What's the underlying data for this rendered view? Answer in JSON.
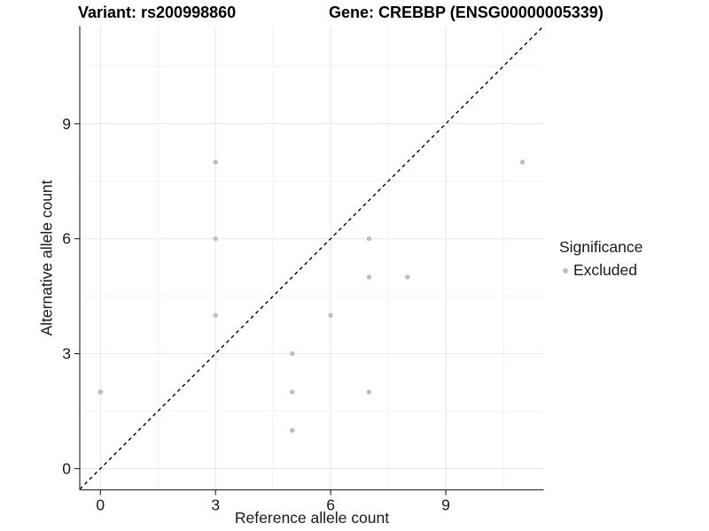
{
  "header": {
    "variant_title": "Variant: rs200998860",
    "gene_title": "Gene: CREBBP (ENSG00000005339)"
  },
  "chart_data": {
    "type": "scatter",
    "title": "Variant: rs200998860  |  Gene: CREBBP (ENSG00000005339)",
    "xlabel": "Reference allele count",
    "ylabel": "Alternative allele count",
    "xticks": [
      0,
      3,
      6,
      9
    ],
    "yticks": [
      0,
      3,
      6,
      9
    ],
    "minor_ticks": [
      1.5,
      4.5,
      7.5,
      10.5
    ],
    "xlim": [
      -0.55,
      11.55
    ],
    "ylim": [
      -0.55,
      11.55
    ],
    "grid": true,
    "identity_line": {
      "equation": "y = x",
      "style": "dashed",
      "color": "#000000"
    },
    "series": [
      {
        "name": "Excluded",
        "color": "#bebebe",
        "points": [
          [
            0,
            2
          ],
          [
            3,
            4
          ],
          [
            3,
            6
          ],
          [
            3,
            8
          ],
          [
            5,
            1
          ],
          [
            5,
            2
          ],
          [
            5,
            3
          ],
          [
            6,
            4
          ],
          [
            7,
            2
          ],
          [
            7,
            5
          ],
          [
            7,
            6
          ],
          [
            8,
            5
          ],
          [
            11,
            8
          ]
        ]
      }
    ],
    "legend": {
      "position": "right",
      "title": "Significance",
      "items": [
        {
          "label": "Excluded",
          "color": "#bebebe"
        }
      ]
    }
  },
  "colors": {
    "background": "#ffffff",
    "point": "#bebebe",
    "grid_major": "#e6e6e6",
    "grid_minor": "#f2f2f2",
    "axis_line": "#333333",
    "tick_text": "#1a1a1a",
    "identity_line": "#000000"
  }
}
